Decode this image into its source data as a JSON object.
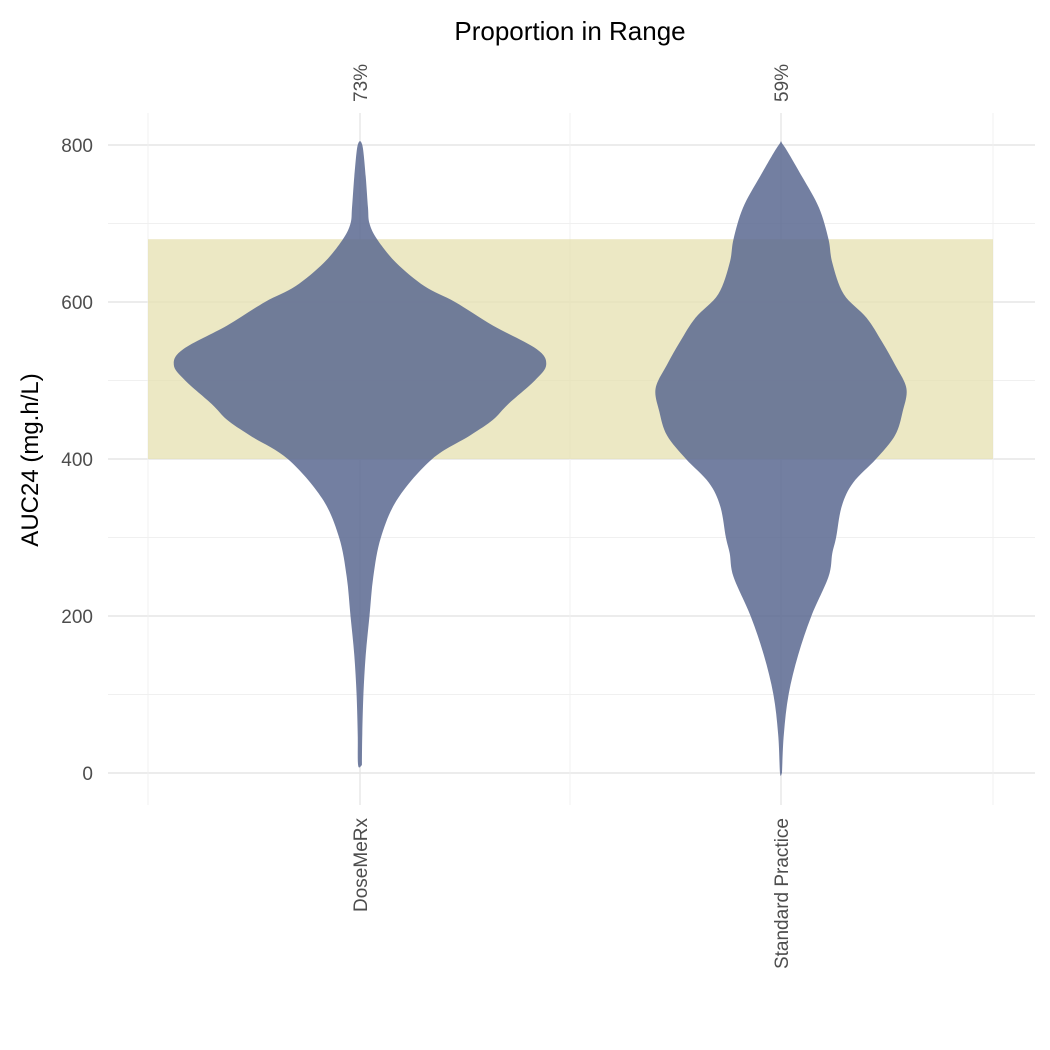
{
  "chart_data": {
    "type": "violin",
    "title": "Proportion in Range",
    "ylabel": "AUC24 (mg.h/L)",
    "xlabel": "",
    "ylim": [
      0,
      800
    ],
    "yticks": [
      0,
      200,
      400,
      600,
      800
    ],
    "grid": true,
    "target_range": [
      400,
      680
    ],
    "colors": {
      "violin": "#5b6890",
      "band": "#e6e0b0"
    },
    "categories": [
      "DoseMeRx",
      "Standard Practice"
    ],
    "series": [
      {
        "category": "DoseMeRx",
        "proportion_label": "73%",
        "density": [
          [
            10,
            0.01
          ],
          [
            50,
            0.012
          ],
          [
            100,
            0.018
          ],
          [
            150,
            0.03
          ],
          [
            200,
            0.05
          ],
          [
            250,
            0.07
          ],
          [
            300,
            0.11
          ],
          [
            350,
            0.2
          ],
          [
            400,
            0.38
          ],
          [
            430,
            0.58
          ],
          [
            450,
            0.7
          ],
          [
            470,
            0.78
          ],
          [
            500,
            0.92
          ],
          [
            520,
            0.98
          ],
          [
            540,
            0.93
          ],
          [
            570,
            0.7
          ],
          [
            600,
            0.5
          ],
          [
            620,
            0.34
          ],
          [
            650,
            0.19
          ],
          [
            680,
            0.09
          ],
          [
            700,
            0.05
          ],
          [
            720,
            0.042
          ],
          [
            760,
            0.03
          ],
          [
            800,
            0.012
          ]
        ]
      },
      {
        "category": "Standard Practice",
        "proportion_label": "59%",
        "density": [
          [
            0,
            0.005
          ],
          [
            50,
            0.015
          ],
          [
            100,
            0.04
          ],
          [
            150,
            0.09
          ],
          [
            200,
            0.16
          ],
          [
            250,
            0.25
          ],
          [
            280,
            0.27
          ],
          [
            300,
            0.29
          ],
          [
            340,
            0.32
          ],
          [
            370,
            0.38
          ],
          [
            400,
            0.5
          ],
          [
            430,
            0.6
          ],
          [
            460,
            0.64
          ],
          [
            490,
            0.66
          ],
          [
            520,
            0.6
          ],
          [
            550,
            0.53
          ],
          [
            580,
            0.45
          ],
          [
            610,
            0.33
          ],
          [
            650,
            0.27
          ],
          [
            680,
            0.25
          ],
          [
            720,
            0.2
          ],
          [
            760,
            0.11
          ],
          [
            800,
            0.012
          ]
        ]
      }
    ]
  }
}
